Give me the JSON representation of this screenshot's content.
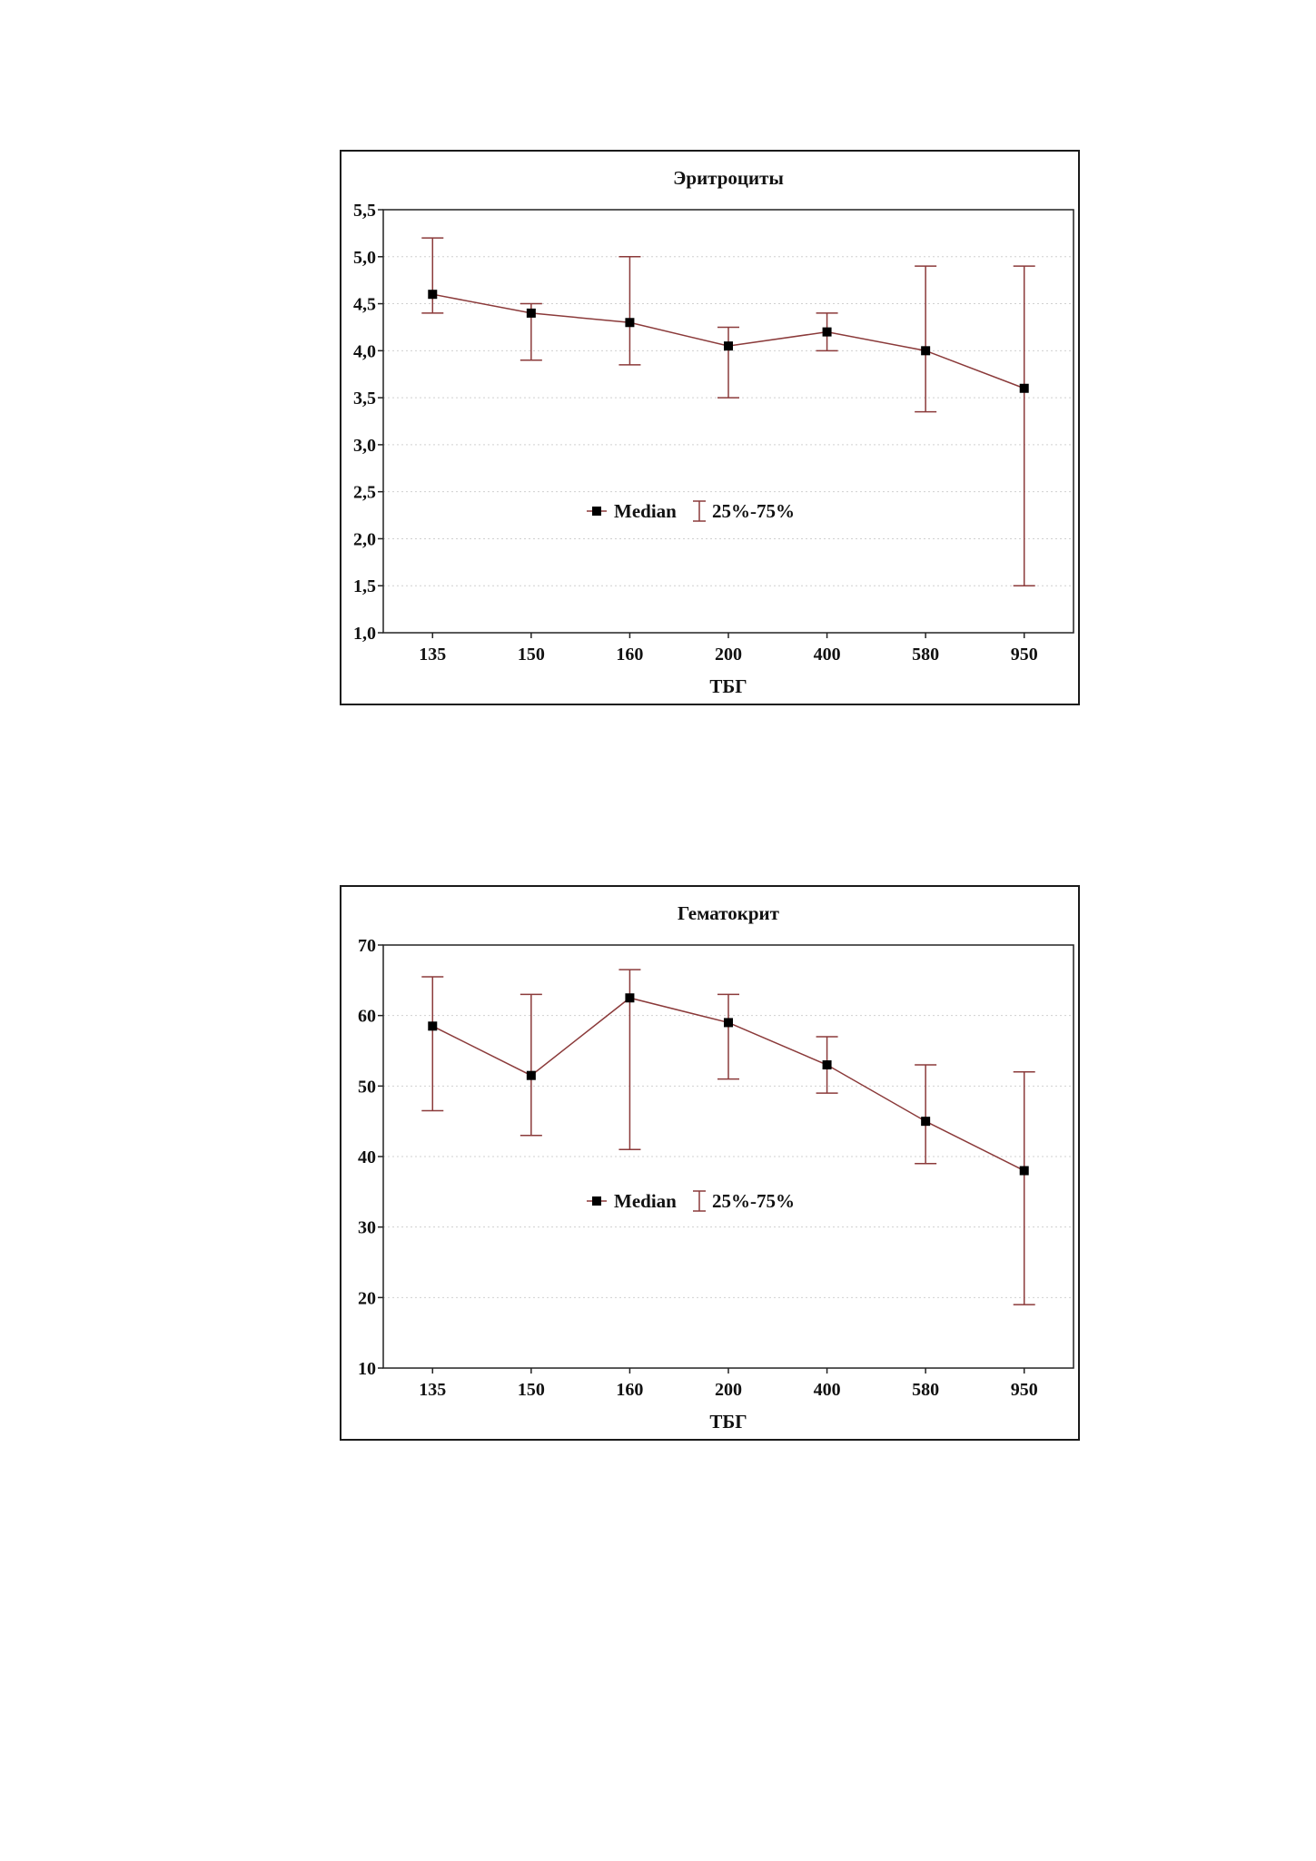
{
  "chart_data": [
    {
      "type": "line",
      "title": "Эритроциты",
      "xlabel": "ТБГ",
      "ylabel": "",
      "categories": [
        "135",
        "150",
        "160",
        "200",
        "400",
        "580",
        "950"
      ],
      "series": [
        {
          "name": "Median",
          "values": [
            4.6,
            4.4,
            4.3,
            4.05,
            4.2,
            4.0,
            3.6
          ]
        },
        {
          "name": "25%-75%",
          "low": [
            4.4,
            3.9,
            3.85,
            3.5,
            4.0,
            3.35,
            1.5
          ],
          "high": [
            5.2,
            4.5,
            5.0,
            4.25,
            4.4,
            4.9,
            4.9
          ]
        }
      ],
      "ylim": [
        1.0,
        5.5
      ],
      "yticks": [
        "1,0",
        "1,5",
        "2,0",
        "2,5",
        "3,0",
        "3,5",
        "4,0",
        "4,5",
        "5,0",
        "5,5"
      ],
      "grid": true,
      "legend": "center",
      "colors": {
        "line": "#8b3a3a",
        "marker": "#000000",
        "errorbar": "#8b3a3a",
        "grid": "#d0d0d0"
      }
    },
    {
      "type": "line",
      "title": "Гематокрит",
      "xlabel": "ТБГ",
      "ylabel": "",
      "categories": [
        "135",
        "150",
        "160",
        "200",
        "400",
        "580",
        "950"
      ],
      "series": [
        {
          "name": "Median",
          "values": [
            58.5,
            51.5,
            62.5,
            59,
            53,
            45,
            38
          ]
        },
        {
          "name": "25%-75%",
          "low": [
            46.5,
            43,
            41,
            51,
            49,
            39,
            19
          ],
          "high": [
            65.5,
            63,
            66.5,
            63,
            57,
            53,
            52
          ]
        }
      ],
      "ylim": [
        10,
        70
      ],
      "yticks": [
        "10",
        "20",
        "30",
        "40",
        "50",
        "60",
        "70"
      ],
      "grid": true,
      "legend": "center",
      "colors": {
        "line": "#8b3a3a",
        "marker": "#000000",
        "errorbar": "#8b3a3a",
        "grid": "#d0d0d0"
      }
    }
  ]
}
